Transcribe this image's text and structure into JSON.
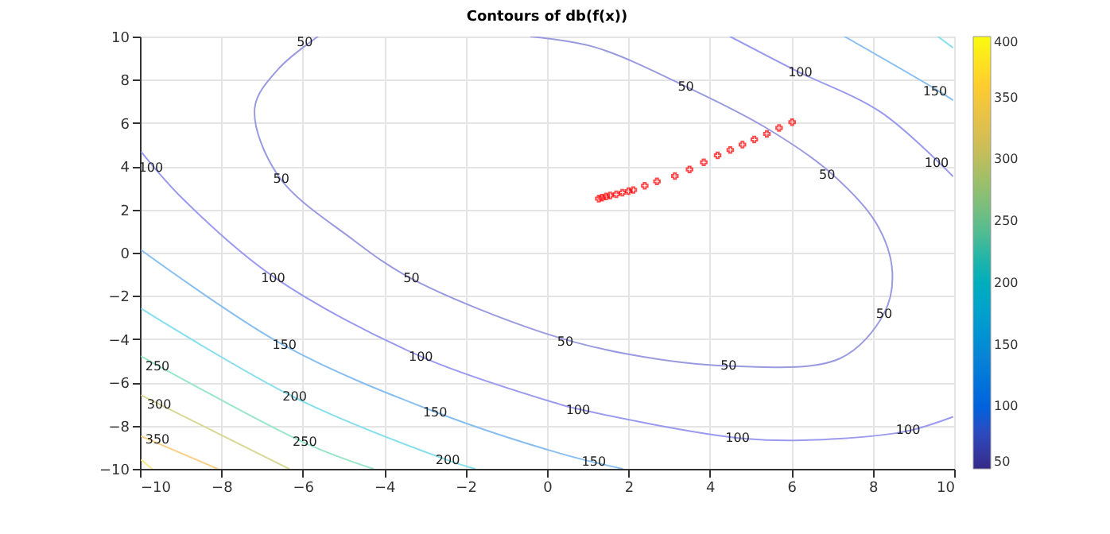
{
  "chart_data": {
    "type": "line",
    "title": "Contours of db(f(x))",
    "xlim": [
      -10,
      10
    ],
    "ylim": [
      -10,
      10
    ],
    "xticks": [
      -10,
      -8,
      -6,
      -4,
      -2,
      0,
      2,
      4,
      6,
      8,
      10
    ],
    "yticks": [
      -10,
      -8,
      -6,
      -4,
      -2,
      0,
      2,
      4,
      6,
      8,
      10
    ],
    "grid": true,
    "line_style": "solid",
    "marker": "none",
    "clim": [
      50,
      400
    ],
    "cticks": [
      50,
      100,
      150,
      200,
      250,
      300,
      350,
      400
    ],
    "series": [
      {
        "color": "#9a9ae0",
        "x": [
          -5.63,
          -6.6,
          -7.18,
          -6.6,
          -4.78,
          -3.33,
          -0.1,
          2.0,
          4.46,
          7.19,
          8.28,
          8.48,
          8.09,
          6.92,
          5.36,
          3.53,
          1.19,
          -0.4
        ],
        "values": [
          10,
          8.5,
          6.7,
          3.55,
          0.62,
          -1.2,
          -3.7,
          -4.7,
          -5.24,
          -4.9,
          -2.8,
          -0.85,
          1.35,
          3.77,
          5.8,
          7.58,
          9.5,
          10
        ]
      },
      {
        "color": "#9a9af0",
        "x": [
          4.5,
          6.14,
          8.2,
          9.96
        ],
        "values": [
          10,
          8.4,
          6.5,
          3.55
        ]
      },
      {
        "color": "#9a9af0",
        "x": [
          -9.96,
          -8.95,
          -6.73,
          -3.1,
          0.29,
          0.68,
          4.85,
          7.2,
          8.87,
          9.96
        ],
        "values": [
          4.65,
          2.5,
          -1.1,
          -4.8,
          -7.0,
          -7.2,
          -8.6,
          -8.6,
          -8.24,
          -7.6
        ]
      },
      {
        "color": "#88bff0",
        "x": [
          7.31,
          9.53,
          9.96
        ],
        "values": [
          10,
          7.58,
          7.07
        ]
      },
      {
        "color": "#88bff0",
        "x": [
          -9.96,
          -6.45,
          -2.7,
          0.29,
          1.85
        ],
        "values": [
          0.11,
          -4.3,
          -7.4,
          -9.27,
          -10
        ]
      },
      {
        "color": "#88dfec",
        "x": [
          9.6,
          9.96
        ],
        "values": [
          10,
          9.5
        ]
      },
      {
        "color": "#88dfec",
        "x": [
          -9.96,
          -6.2,
          -2.44,
          -1.77
        ],
        "values": [
          -2.6,
          -6.7,
          -9.6,
          -10
        ]
      },
      {
        "color": "#99e6c8",
        "x": [
          -9.96,
          -5.95,
          -4.27
        ],
        "values": [
          -4.8,
          -8.8,
          -10
        ]
      },
      {
        "color": "#d8d898",
        "x": [
          -9.96,
          -6.34
        ],
        "values": [
          -6.6,
          -10
        ]
      },
      {
        "color": "#f8d088",
        "x": [
          -9.96,
          -8.09
        ],
        "values": [
          -8.5,
          -10
        ]
      },
      {
        "color": "#f6ee88",
        "x": [
          -9.96,
          -9.7
        ],
        "values": [
          -9.6,
          -10
        ]
      },
      {
        "type": "scatter",
        "color": "#ff0000",
        "marker": "cross",
        "x": [
          1.27,
          1.35,
          1.45,
          1.55,
          1.7,
          1.85,
          2.0,
          2.12,
          2.4,
          2.7,
          3.14,
          3.5,
          3.85,
          4.19,
          4.5,
          4.8,
          5.09,
          5.4,
          5.7,
          6.02
        ],
        "values": [
          2.5,
          2.55,
          2.6,
          2.65,
          2.7,
          2.78,
          2.85,
          2.9,
          3.1,
          3.3,
          3.55,
          3.85,
          4.18,
          4.5,
          4.75,
          5.0,
          5.24,
          5.5,
          5.77,
          6.04
        ]
      }
    ],
    "annotations": [
      {
        "text": "50",
        "x": -5.95,
        "y": 9.7
      },
      {
        "text": "50",
        "x": -6.53,
        "y": 3.4
      },
      {
        "text": "50",
        "x": -3.33,
        "y": -1.2
      },
      {
        "text": "50",
        "x": 0.45,
        "y": -4.15
      },
      {
        "text": "50",
        "x": 4.46,
        "y": -5.24
      },
      {
        "text": "50",
        "x": 8.28,
        "y": -2.85
      },
      {
        "text": "50",
        "x": 6.88,
        "y": 3.55
      },
      {
        "text": "50",
        "x": 3.41,
        "y": 7.65
      },
      {
        "text": "100",
        "x": -9.73,
        "y": 3.9
      },
      {
        "text": "100",
        "x": -6.73,
        "y": -1.2
      },
      {
        "text": "100",
        "x": -3.1,
        "y": -4.85
      },
      {
        "text": "100",
        "x": 0.76,
        "y": -7.3
      },
      {
        "text": "100",
        "x": 4.68,
        "y": -8.6
      },
      {
        "text": "100",
        "x": 8.87,
        "y": -8.24
      },
      {
        "text": "100",
        "x": 9.57,
        "y": 4.1
      },
      {
        "text": "100",
        "x": 6.22,
        "y": 8.3
      },
      {
        "text": "150",
        "x": -6.45,
        "y": -4.3
      },
      {
        "text": "150",
        "x": -2.75,
        "y": -7.44
      },
      {
        "text": "150",
        "x": 1.15,
        "y": -9.7
      },
      {
        "text": "150",
        "x": 9.53,
        "y": 7.44
      },
      {
        "text": "200",
        "x": -6.2,
        "y": -6.7
      },
      {
        "text": "200",
        "x": -2.44,
        "y": -9.63
      },
      {
        "text": "250",
        "x": -9.57,
        "y": -5.3
      },
      {
        "text": "250",
        "x": -5.95,
        "y": -8.8
      },
      {
        "text": "300",
        "x": -9.53,
        "y": -7.07
      },
      {
        "text": "350",
        "x": -9.57,
        "y": -8.68
      }
    ]
  }
}
